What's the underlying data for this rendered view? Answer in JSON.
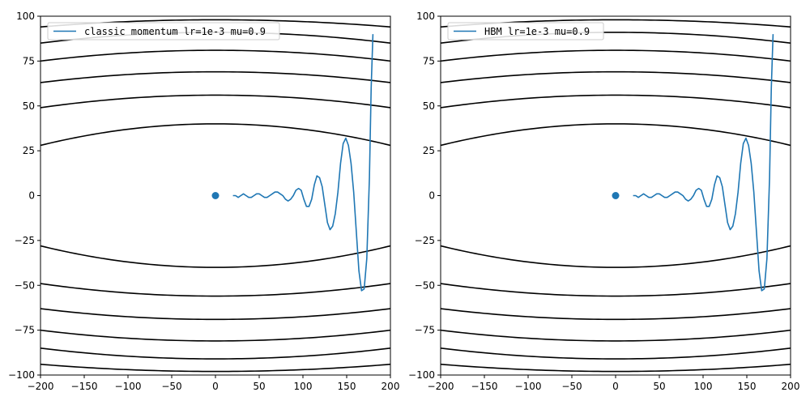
{
  "chart_data": [
    {
      "type": "line",
      "legend": "classic momentum lr=1e-3 mu=0.9",
      "legend_location": "upper-left",
      "xlim": [
        -200,
        200
      ],
      "ylim": [
        -100,
        100
      ],
      "xticks": [
        -200,
        -150,
        -100,
        -50,
        0,
        50,
        100,
        150,
        200
      ],
      "yticks": [
        -100,
        -75,
        -50,
        -25,
        0,
        25,
        50,
        75,
        100
      ],
      "xtick_labels": [
        "−200",
        "−150",
        "−100",
        "−50",
        "0",
        "50",
        "100",
        "150",
        "200"
      ],
      "ytick_labels": [
        "−100",
        "−75",
        "−50",
        "−25",
        "0",
        "25",
        "50",
        "75",
        "100"
      ],
      "contour_levels_y_at_center": [
        40,
        56,
        69,
        81,
        91,
        98
      ],
      "contour_levels_y_at_edge": [
        28,
        49,
        63,
        75,
        85,
        94
      ],
      "minimum_point": [
        0,
        0
      ],
      "series": [
        {
          "name": "classic momentum lr=1e-3 mu=0.9",
          "color": "#1f77b4",
          "x": [
            180,
            178,
            176,
            173,
            170,
            167,
            164,
            161,
            158,
            155,
            152,
            149,
            146,
            143,
            140,
            137,
            134,
            131,
            128,
            125,
            122,
            119,
            116,
            113,
            110,
            107,
            104,
            101,
            98,
            95,
            92,
            89,
            86,
            83,
            80,
            77,
            74,
            71,
            68,
            65,
            62,
            59,
            56,
            53,
            50,
            47,
            44,
            41,
            38,
            35,
            32,
            29,
            26,
            23,
            20
          ],
          "y": [
            90,
            60,
            10,
            -35,
            -52,
            -53,
            -42,
            -20,
            2,
            18,
            28,
            32,
            29,
            18,
            2,
            -10,
            -17,
            -19,
            -15,
            -5,
            5,
            10,
            11,
            6,
            -2,
            -6,
            -6,
            -2,
            3,
            4,
            3,
            0,
            -2,
            -3,
            -2,
            0,
            1,
            2,
            2,
            1,
            0,
            -1,
            -1,
            0,
            1,
            1,
            0,
            -1,
            -1,
            0,
            1,
            0,
            -1,
            0,
            0
          ]
        }
      ]
    },
    {
      "type": "line",
      "legend": "HBM lr=1e-3 mu=0.9",
      "legend_location": "upper-left",
      "xlim": [
        -200,
        200
      ],
      "ylim": [
        -100,
        100
      ],
      "xticks": [
        -200,
        -150,
        -100,
        -50,
        0,
        50,
        100,
        150,
        200
      ],
      "yticks": [
        -100,
        -75,
        -50,
        -25,
        0,
        25,
        50,
        75,
        100
      ],
      "xtick_labels": [
        "−200",
        "−150",
        "−100",
        "−50",
        "0",
        "50",
        "100",
        "150",
        "200"
      ],
      "ytick_labels": [
        "−100",
        "−75",
        "−50",
        "−25",
        "0",
        "25",
        "50",
        "75",
        "100"
      ],
      "contour_levels_y_at_center": [
        40,
        56,
        69,
        81,
        91,
        98
      ],
      "contour_levels_y_at_edge": [
        28,
        49,
        63,
        75,
        85,
        94
      ],
      "minimum_point": [
        0,
        0
      ],
      "series": [
        {
          "name": "HBM lr=1e-3 mu=0.9",
          "color": "#1f77b4",
          "x": [
            180,
            178,
            176,
            173,
            170,
            167,
            164,
            161,
            158,
            155,
            152,
            149,
            146,
            143,
            140,
            137,
            134,
            131,
            128,
            125,
            122,
            119,
            116,
            113,
            110,
            107,
            104,
            101,
            98,
            95,
            92,
            89,
            86,
            83,
            80,
            77,
            74,
            71,
            68,
            65,
            62,
            59,
            56,
            53,
            50,
            47,
            44,
            41,
            38,
            35,
            32,
            29,
            26,
            23,
            20
          ],
          "y": [
            90,
            60,
            10,
            -35,
            -52,
            -53,
            -42,
            -20,
            2,
            18,
            28,
            32,
            29,
            18,
            2,
            -10,
            -17,
            -19,
            -15,
            -5,
            5,
            10,
            11,
            6,
            -2,
            -6,
            -6,
            -2,
            3,
            4,
            3,
            0,
            -2,
            -3,
            -2,
            0,
            1,
            2,
            2,
            1,
            0,
            -1,
            -1,
            0,
            1,
            1,
            0,
            -1,
            -1,
            0,
            1,
            0,
            -1,
            0,
            0
          ]
        }
      ]
    }
  ]
}
